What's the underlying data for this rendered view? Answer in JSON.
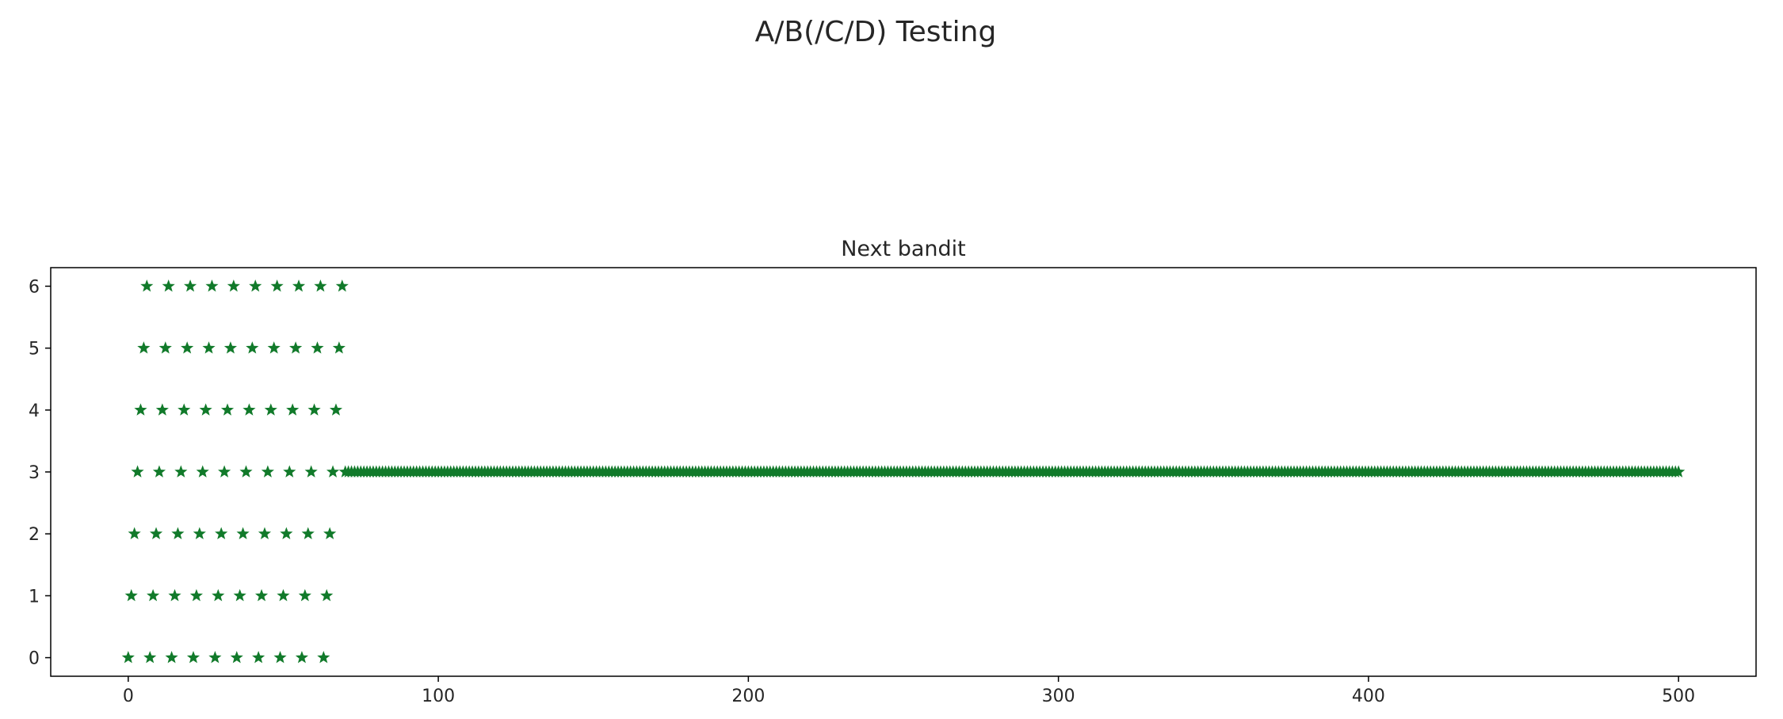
{
  "figure": {
    "suptitle": "A/B(/C/D) Testing"
  },
  "colors": {
    "marker": "#117a2a",
    "axes": "#000000",
    "text": "#262626"
  },
  "chart_data": {
    "type": "scatter",
    "title": "Next bandit",
    "xlabel": "",
    "ylabel": "",
    "marker": "star",
    "xlim": [
      -25,
      525
    ],
    "ylim": [
      -0.3,
      6.3
    ],
    "xticks": [
      0,
      100,
      200,
      300,
      400,
      500
    ],
    "yticks": [
      0,
      1,
      2,
      3,
      4,
      5,
      6
    ],
    "grid": false,
    "exploration": {
      "description": "round-robin over 7 arms for the first 70 steps (arm = step mod 7)",
      "steps": [
        0,
        69
      ],
      "arms": 7
    },
    "exploitation": {
      "arm": 3,
      "steps": [
        70,
        500
      ]
    }
  }
}
